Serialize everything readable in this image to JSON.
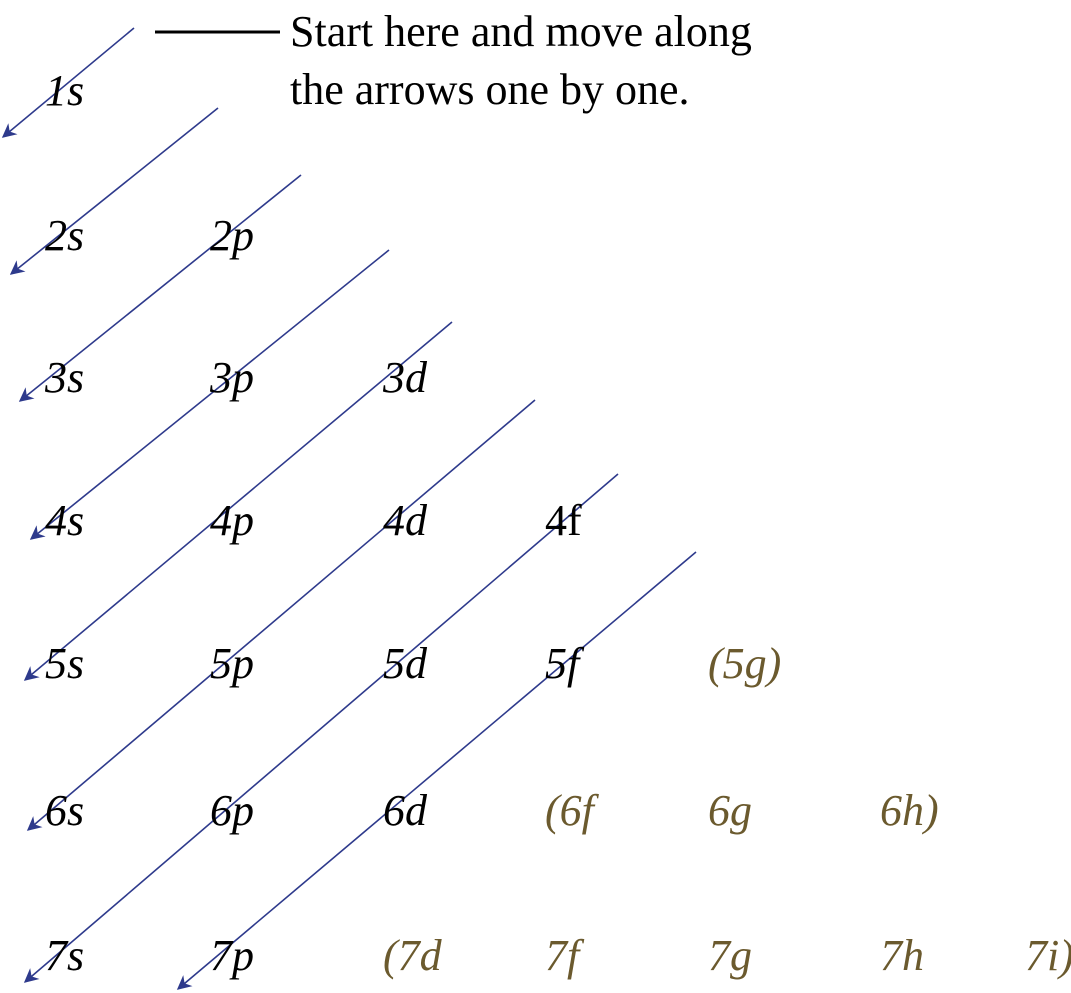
{
  "note": {
    "lines": [
      "Start here and move along",
      "the arrows one by one."
    ]
  },
  "orbitals": {
    "rows": [
      [
        "1s"
      ],
      [
        "2s",
        "2p"
      ],
      [
        "3s",
        "3p",
        "3d"
      ],
      [
        "4s",
        "4p",
        "4d",
        "4f"
      ],
      [
        "5s",
        "5p",
        "5d",
        "5f",
        "(5g)"
      ],
      [
        "6s",
        "6p",
        "6d",
        "(6f",
        "6g",
        "6h)"
      ],
      [
        "7s",
        "7p",
        "(7d",
        "7f",
        "7g",
        "7h",
        "7i)"
      ]
    ]
  }
}
